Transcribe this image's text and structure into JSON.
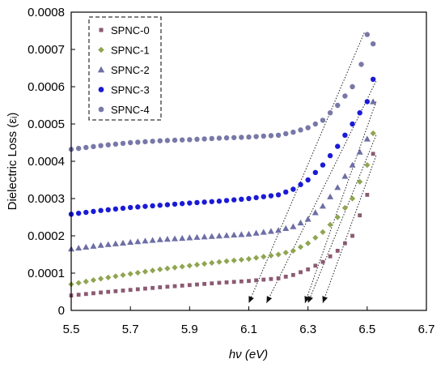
{
  "chart_data": {
    "type": "scatter",
    "title": "",
    "xlabel": "hν  (eV)",
    "ylabel": "Dielectric Loss (εᵢ)",
    "xlim": [
      5.5,
      6.7
    ],
    "ylim": [
      0,
      0.0008
    ],
    "x_ticks": [
      "5.5",
      "5.7",
      "5.9",
      "6.1",
      "6.3",
      "6.5",
      "6.7"
    ],
    "y_ticks": [
      "0",
      "0.0001",
      "0.0002",
      "0.0003",
      "0.0004",
      "0.0005",
      "0.0006",
      "0.0007",
      "0.0008"
    ],
    "grid": false,
    "legend_position": "top-left",
    "series": [
      {
        "name": "SPNC-0",
        "marker": "square",
        "color": "#8b5a72",
        "points": [
          [
            5.5,
            4e-05
          ],
          [
            5.6,
            4.8e-05
          ],
          [
            5.7,
            5.5e-05
          ],
          [
            5.8,
            6.2e-05
          ],
          [
            5.9,
            6.8e-05
          ],
          [
            6.0,
            7.4e-05
          ],
          [
            6.1,
            7.9e-05
          ],
          [
            6.2,
            8.6e-05
          ],
          [
            6.25,
            9.5e-05
          ],
          [
            6.3,
            0.00011
          ],
          [
            6.35,
            0.00013
          ],
          [
            6.4,
            0.00016
          ],
          [
            6.45,
            0.0002
          ],
          [
            6.5,
            0.00031
          ],
          [
            6.52,
            0.00042
          ]
        ]
      },
      {
        "name": "SPNC-1",
        "marker": "diamond",
        "color": "#8fa550",
        "points": [
          [
            5.5,
            7e-05
          ],
          [
            5.6,
            8.5e-05
          ],
          [
            5.7,
            9.8e-05
          ],
          [
            5.8,
            0.00011
          ],
          [
            5.9,
            0.00012
          ],
          [
            6.0,
            0.00013
          ],
          [
            6.1,
            0.000138
          ],
          [
            6.2,
            0.00015
          ],
          [
            6.25,
            0.00016
          ],
          [
            6.3,
            0.00018
          ],
          [
            6.35,
            0.00021
          ],
          [
            6.4,
            0.00025
          ],
          [
            6.45,
            0.0003
          ],
          [
            6.5,
            0.00039
          ],
          [
            6.52,
            0.000475
          ]
        ]
      },
      {
        "name": "SPNC-2",
        "marker": "triangle",
        "color": "#6e6ea6",
        "points": [
          [
            5.5,
            0.000165
          ],
          [
            5.6,
            0.000175
          ],
          [
            5.7,
            0.000183
          ],
          [
            5.8,
            0.00019
          ],
          [
            5.9,
            0.000195
          ],
          [
            6.0,
            0.0002
          ],
          [
            6.1,
            0.000205
          ],
          [
            6.2,
            0.000215
          ],
          [
            6.25,
            0.000225
          ],
          [
            6.3,
            0.000245
          ],
          [
            6.35,
            0.00028
          ],
          [
            6.4,
            0.00033
          ],
          [
            6.45,
            0.00039
          ],
          [
            6.5,
            0.00046
          ],
          [
            6.52,
            0.00056
          ]
        ]
      },
      {
        "name": "SPNC-3",
        "marker": "circle",
        "color": "#1a1ad6",
        "points": [
          [
            5.5,
            0.000258
          ],
          [
            5.6,
            0.000268
          ],
          [
            5.7,
            0.000276
          ],
          [
            5.8,
            0.000282
          ],
          [
            5.9,
            0.000288
          ],
          [
            6.0,
            0.000293
          ],
          [
            6.1,
            0.0003
          ],
          [
            6.2,
            0.00031
          ],
          [
            6.25,
            0.000325
          ],
          [
            6.3,
            0.00035
          ],
          [
            6.35,
            0.00039
          ],
          [
            6.4,
            0.00044
          ],
          [
            6.45,
            0.0005
          ],
          [
            6.5,
            0.00056
          ],
          [
            6.52,
            0.00062
          ]
        ]
      },
      {
        "name": "SPNC-4",
        "marker": "circle",
        "color": "#7878a8",
        "points": [
          [
            5.5,
            0.000432
          ],
          [
            5.6,
            0.000442
          ],
          [
            5.7,
            0.00045
          ],
          [
            5.8,
            0.000455
          ],
          [
            5.9,
            0.000458
          ],
          [
            6.0,
            0.000462
          ],
          [
            6.1,
            0.000465
          ],
          [
            6.2,
            0.00047
          ],
          [
            6.25,
            0.000478
          ],
          [
            6.3,
            0.00049
          ],
          [
            6.35,
            0.00051
          ],
          [
            6.4,
            0.00055
          ],
          [
            6.45,
            0.0006
          ],
          [
            6.48,
            0.00066
          ],
          [
            6.5,
            0.00074
          ],
          [
            6.52,
            0.000715
          ]
        ]
      }
    ],
    "extrapolation_lines": [
      {
        "from": [
          6.49,
          0.000745
        ],
        "to": [
          6.1,
          2e-05
        ]
      },
      {
        "from": [
          6.53,
          0.000615
        ],
        "to": [
          6.16,
          2e-05
        ]
      },
      {
        "from": [
          6.53,
          0.00056
        ],
        "to": [
          6.29,
          2e-05
        ]
      },
      {
        "from": [
          6.53,
          0.00047
        ],
        "to": [
          6.3,
          2e-05
        ]
      },
      {
        "from": [
          6.53,
          0.000415
        ],
        "to": [
          6.35,
          2e-05
        ]
      }
    ]
  }
}
